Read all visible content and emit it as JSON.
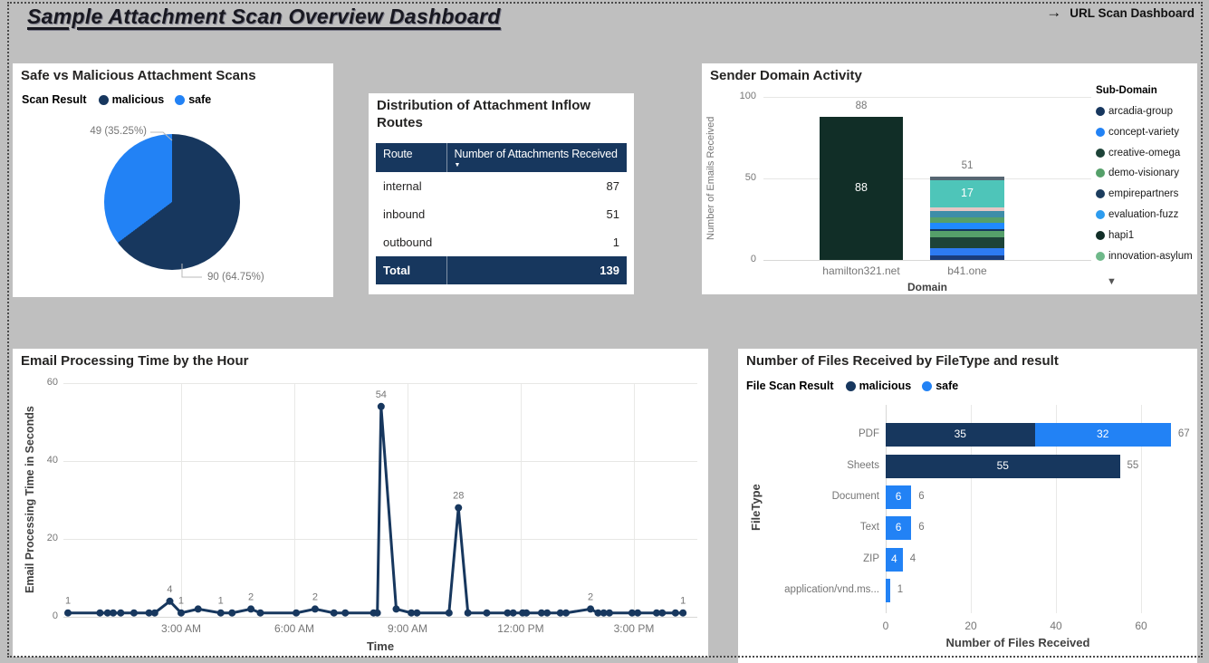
{
  "page": {
    "title": "Sample Attachment Scan Overview Dashboard",
    "nav": {
      "arrow": "→",
      "label": "URL Scan Dashboard"
    }
  },
  "chart_data": [
    {
      "id": "scan_result_pie",
      "type": "pie",
      "title": "Safe vs Malicious Attachment Scans",
      "legend_title": "Scan Result",
      "legend_position": "top",
      "slices": [
        {
          "label": "malicious",
          "value": 90,
          "percent": 64.75,
          "color": "#17375E",
          "callout": "90 (64.75%)"
        },
        {
          "label": "safe",
          "value": 49,
          "percent": 35.25,
          "color": "#2282F5",
          "callout": "49 (35.25%)"
        }
      ]
    },
    {
      "id": "inflow_routes_table",
      "type": "table",
      "title": "Distribution of Attachment Inflow Routes",
      "columns": [
        "Route",
        "Number of Attachments Received"
      ],
      "sort_icon": "▼",
      "rows": [
        [
          "internal",
          87
        ],
        [
          "inbound",
          51
        ],
        [
          "outbound",
          1
        ]
      ],
      "total_row": {
        "label": "Total",
        "value": 139
      }
    },
    {
      "id": "sender_domain_activity",
      "type": "stacked-bar",
      "title": "Sender Domain Activity",
      "xlabel": "Domain",
      "ylabel": "Number of Emails Received",
      "ylim": [
        0,
        100
      ],
      "yticks": [
        0,
        50,
        100
      ],
      "legend_title": "Sub-Domain",
      "legend_overflow_icon": "▼",
      "legend": [
        {
          "label": "arcadia-group",
          "color": "#17375E"
        },
        {
          "label": "concept-variety",
          "color": "#2282F5"
        },
        {
          "label": "creative-omega",
          "color": "#1D4338"
        },
        {
          "label": "demo-visionary",
          "color": "#55A06A"
        },
        {
          "label": "empirepartners",
          "color": "#1C3D5E"
        },
        {
          "label": "evaluation-fuzz",
          "color": "#2D9CEF"
        },
        {
          "label": "hapi1",
          "color": "#112E27"
        },
        {
          "label": "innovation-asylum",
          "color": "#6FB98A"
        }
      ],
      "bars": [
        {
          "category": "hamilton321.net",
          "total": 88,
          "segments": [
            {
              "value": 88,
              "color": "#112E27",
              "label": "88"
            }
          ]
        },
        {
          "category": "b41.one",
          "total": 51,
          "segments": [
            {
              "value": 3,
              "color": "#1A3D7C"
            },
            {
              "value": 4,
              "color": "#2D7BF2"
            },
            {
              "value": 7,
              "color": "#1D4338"
            },
            {
              "value": 4,
              "color": "#55A06A"
            },
            {
              "value": 1,
              "color": "#17375E"
            },
            {
              "value": 4,
              "color": "#1F8AFF"
            },
            {
              "value": 3,
              "color": "#55A06A"
            },
            {
              "value": 4,
              "color": "#3E8DA8"
            },
            {
              "value": 2,
              "color": "#E5C6C4"
            },
            {
              "value": 17,
              "color": "#4EC5B9",
              "label": "17"
            },
            {
              "value": 2,
              "color": "#566672"
            }
          ]
        }
      ]
    },
    {
      "id": "email_processing_time",
      "type": "line",
      "title": "Email Processing Time by the Hour",
      "xlabel": "Time",
      "ylabel": "Email Processing Time in Seconds",
      "ylim": [
        0,
        60
      ],
      "yticks": [
        0,
        20,
        40,
        60
      ],
      "line_color": "#17375E",
      "xticks": [
        {
          "h": 3,
          "label": "3:00 AM"
        },
        {
          "h": 6,
          "label": "6:00 AM"
        },
        {
          "h": 9,
          "label": "9:00 AM"
        },
        {
          "h": 12,
          "label": "12:00 PM"
        },
        {
          "h": 15,
          "label": "3:00 PM"
        }
      ],
      "points": [
        {
          "h": 0.0,
          "v": 1,
          "label": "1"
        },
        {
          "h": 0.85,
          "v": 1
        },
        {
          "h": 1.05,
          "v": 1
        },
        {
          "h": 1.2,
          "v": 1
        },
        {
          "h": 1.4,
          "v": 1
        },
        {
          "h": 1.75,
          "v": 1
        },
        {
          "h": 2.15,
          "v": 1
        },
        {
          "h": 2.3,
          "v": 1
        },
        {
          "h": 2.7,
          "v": 4,
          "label": "4"
        },
        {
          "h": 3.0,
          "v": 1,
          "label": "1"
        },
        {
          "h": 3.45,
          "v": 2
        },
        {
          "h": 4.05,
          "v": 1,
          "label": "1"
        },
        {
          "h": 4.35,
          "v": 1
        },
        {
          "h": 4.85,
          "v": 2,
          "label": "2"
        },
        {
          "h": 5.1,
          "v": 1
        },
        {
          "h": 6.05,
          "v": 1
        },
        {
          "h": 6.55,
          "v": 2,
          "label": "2"
        },
        {
          "h": 7.05,
          "v": 1
        },
        {
          "h": 7.35,
          "v": 1
        },
        {
          "h": 8.1,
          "v": 1
        },
        {
          "h": 8.2,
          "v": 1
        },
        {
          "h": 8.3,
          "v": 54,
          "label": "54"
        },
        {
          "h": 8.7,
          "v": 2
        },
        {
          "h": 9.1,
          "v": 1
        },
        {
          "h": 9.25,
          "v": 1
        },
        {
          "h": 10.1,
          "v": 1
        },
        {
          "h": 10.35,
          "v": 28,
          "label": "28"
        },
        {
          "h": 10.6,
          "v": 1
        },
        {
          "h": 11.1,
          "v": 1
        },
        {
          "h": 11.65,
          "v": 1
        },
        {
          "h": 11.8,
          "v": 1
        },
        {
          "h": 12.05,
          "v": 1
        },
        {
          "h": 12.15,
          "v": 1
        },
        {
          "h": 12.55,
          "v": 1
        },
        {
          "h": 12.7,
          "v": 1
        },
        {
          "h": 13.05,
          "v": 1
        },
        {
          "h": 13.2,
          "v": 1
        },
        {
          "h": 13.85,
          "v": 2,
          "label": "2"
        },
        {
          "h": 14.05,
          "v": 1
        },
        {
          "h": 14.2,
          "v": 1
        },
        {
          "h": 14.35,
          "v": 1
        },
        {
          "h": 14.95,
          "v": 1
        },
        {
          "h": 15.1,
          "v": 1
        },
        {
          "h": 15.6,
          "v": 1
        },
        {
          "h": 15.75,
          "v": 1
        },
        {
          "h": 16.1,
          "v": 1
        },
        {
          "h": 16.3,
          "v": 1,
          "label": "1"
        }
      ]
    },
    {
      "id": "files_by_filetype",
      "type": "h-stacked-bar",
      "title": "Number of Files Received by FileType and result",
      "legend_title": "File Scan Result",
      "xlabel": "Number of Files Received",
      "ylabel": "FileType",
      "xlim": [
        0,
        67
      ],
      "xticks": [
        0,
        20,
        40,
        60
      ],
      "series": [
        {
          "name": "malicious",
          "color": "#17375E"
        },
        {
          "name": "safe",
          "color": "#2282F5"
        }
      ],
      "rows": [
        {
          "category": "PDF",
          "malicious": 35,
          "safe": 32,
          "total": 67
        },
        {
          "category": "Sheets",
          "malicious": 55,
          "safe": 0,
          "total": 55
        },
        {
          "category": "Document",
          "malicious": 0,
          "safe": 6,
          "total": 6
        },
        {
          "category": "Text",
          "malicious": 0,
          "safe": 6,
          "total": 6
        },
        {
          "category": "ZIP",
          "malicious": 0,
          "safe": 4,
          "total": 4
        },
        {
          "category": "application/vnd.ms...",
          "malicious": 0,
          "safe": 1,
          "total": 1
        }
      ]
    }
  ]
}
